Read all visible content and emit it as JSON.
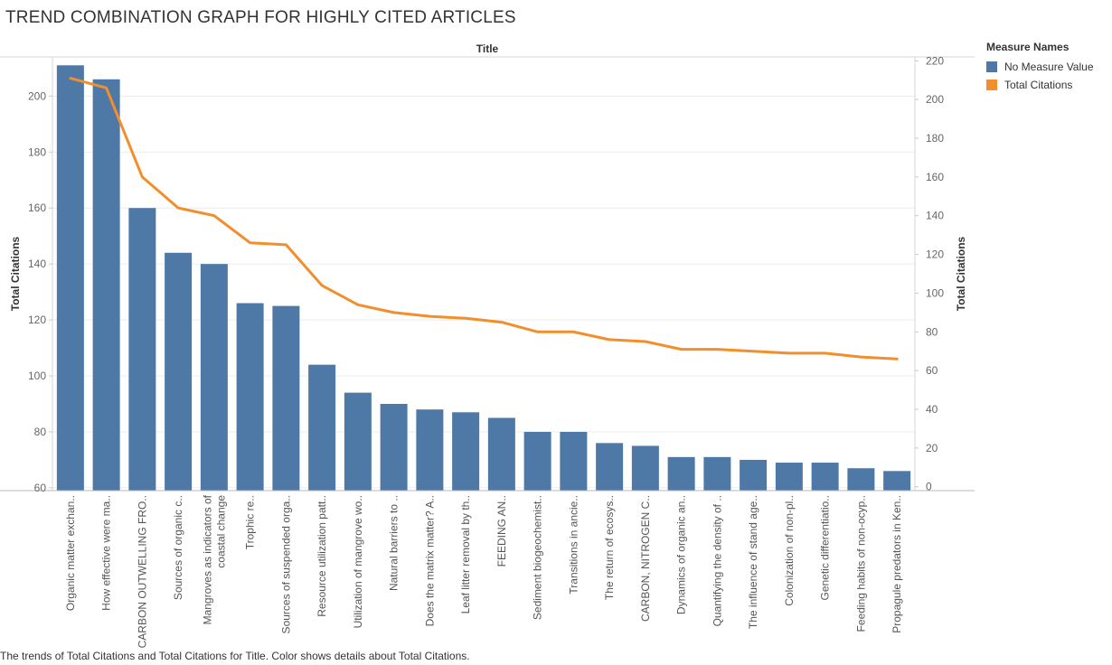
{
  "title": "TREND COMBINATION GRAPH FOR HIGHLY CITED ARTICLES",
  "footnote": "The trends of Total Citations and Total Citations for Title.  Color shows details about Total Citations.",
  "legend": {
    "title": "Measure Names",
    "items": [
      {
        "label": "No Measure Value",
        "color": "#4e79a7"
      },
      {
        "label": "Total Citations",
        "color": "#f28e2b"
      }
    ]
  },
  "chart_data": {
    "type": "bar",
    "xlabel": "Title",
    "ylabel": "Total Citations",
    "y2label": "Total Citations",
    "ylim": [
      59,
      214
    ],
    "y_ticks": [
      60,
      80,
      100,
      120,
      140,
      160,
      180,
      200
    ],
    "y2lim": [
      -2,
      222
    ],
    "y2_ticks": [
      0,
      20,
      40,
      60,
      80,
      100,
      120,
      140,
      160,
      180,
      200,
      220
    ],
    "grid": true,
    "legend_position": "right",
    "categories": [
      [
        "Organic matter exchan.."
      ],
      [
        "How effective were ma.."
      ],
      [
        "CARBON OUTWELLING FRO.."
      ],
      [
        "Sources of organic c.."
      ],
      [
        "Mangroves as indicators of",
        "coastal change"
      ],
      [
        "Trophic re.."
      ],
      [
        "Sources of suspended orga.."
      ],
      [
        "Resource utilization patt.."
      ],
      [
        "Utilization of mangrove wo.."
      ],
      [
        "Natural barriers to .."
      ],
      [
        "Does the matrix matter? A.."
      ],
      [
        "Leaf litter removal by th.."
      ],
      [
        "FEEDING AN.."
      ],
      [
        "Sediment biogeochemist.."
      ],
      [
        "Transitions in ancie.."
      ],
      [
        "The return of ecosys.."
      ],
      [
        "CARBON, NITROGEN C.."
      ],
      [
        "Dynamics of organic an.."
      ],
      [
        "Quantifying the density of .."
      ],
      [
        "The influence of stand age.."
      ],
      [
        "Colonization of non-pl.."
      ],
      [
        "Genetic differentiatio.."
      ],
      [
        "Feeding habits of non-ocyp.."
      ],
      [
        "Propagule predators in Ken.."
      ]
    ],
    "series": [
      {
        "name": "No Measure Value",
        "chart": "bar",
        "axis": "left",
        "color": "#4e79a7",
        "values": [
          211,
          206,
          160,
          144,
          140,
          126,
          125,
          104,
          94,
          90,
          88,
          87,
          85,
          80,
          80,
          76,
          75,
          71,
          71,
          70,
          69,
          69,
          67,
          66
        ]
      },
      {
        "name": "Total Citations",
        "chart": "line",
        "axis": "right",
        "color": "#f28e2b",
        "values": [
          211,
          206,
          160,
          144,
          140,
          126,
          125,
          104,
          94,
          90,
          88,
          87,
          85,
          80,
          80,
          76,
          75,
          71,
          71,
          70,
          69,
          69,
          67,
          66
        ]
      }
    ]
  }
}
